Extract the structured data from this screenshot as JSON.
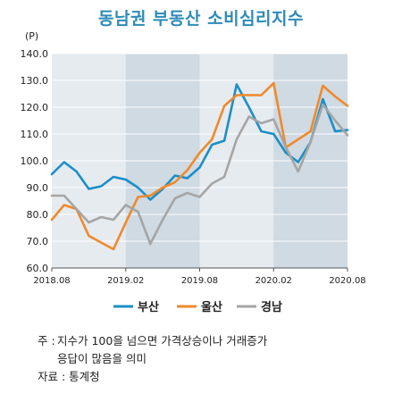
{
  "title": "동남권 부동산 소비심리지수",
  "chart_data": {
    "type": "line",
    "unit_label": "(P)",
    "ylim": [
      60,
      140
    ],
    "y_ticks": [
      "60.0",
      "70.0",
      "80.0",
      "90.0",
      "100.0",
      "110.0",
      "120.0",
      "130.0",
      "140.0"
    ],
    "x_start": "2018.08",
    "x_end": "2020.08",
    "x_ticks": [
      "2018.08",
      "2019.02",
      "2019.08",
      "2020.02",
      "2020.08"
    ],
    "shaded_periods": [
      [
        "2019.02",
        "2019.08"
      ],
      [
        "2020.02",
        "2020.08"
      ]
    ],
    "x": [
      "2018.08",
      "2018.09",
      "2018.10",
      "2018.11",
      "2018.12",
      "2019.01",
      "2019.02",
      "2019.03",
      "2019.04",
      "2019.05",
      "2019.06",
      "2019.07",
      "2019.08",
      "2019.09",
      "2019.10",
      "2019.11",
      "2019.12",
      "2020.01",
      "2020.02",
      "2020.03",
      "2020.04",
      "2020.05",
      "2020.06",
      "2020.07",
      "2020.08"
    ],
    "series": [
      {
        "name": "부산",
        "color": "#1a8fc8",
        "values": [
          95,
          99.5,
          96,
          89.5,
          90.5,
          94,
          93,
          90,
          85.5,
          89.5,
          94.5,
          93.5,
          97.5,
          106,
          107.5,
          128.5,
          120,
          111,
          110,
          103,
          99.5,
          107,
          123,
          111,
          111.5
        ]
      },
      {
        "name": "울산",
        "color": "#f0892b",
        "values": [
          78,
          83.5,
          82,
          72,
          69.5,
          67,
          77,
          86.5,
          87,
          90,
          92,
          96.5,
          103,
          108,
          120.5,
          124.5,
          124.5,
          124.5,
          129,
          105,
          108,
          111,
          128,
          124,
          120.5
        ]
      },
      {
        "name": "경남",
        "color": "#a5a5a5",
        "values": [
          87,
          87,
          82,
          77,
          79,
          78,
          83.5,
          81,
          69,
          78,
          86,
          88,
          86.5,
          91.5,
          94,
          108,
          116.5,
          114,
          115.5,
          105,
          96,
          107,
          121,
          115,
          109.5
        ]
      }
    ]
  },
  "notes": {
    "prefix1": "주 :",
    "line1": "지수가 100을 넘으면 가격상승이나 거래증가",
    "line2": "응답이 많음을 의미",
    "prefix2": "자료 :",
    "source": "통계청"
  }
}
